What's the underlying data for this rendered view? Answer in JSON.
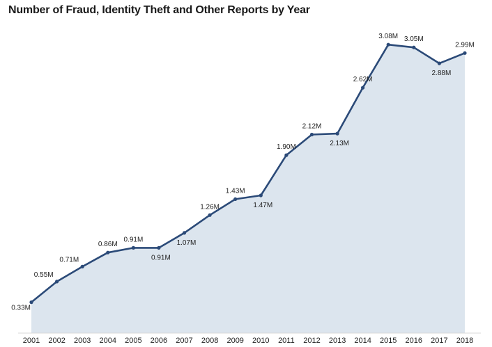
{
  "chart_data": {
    "type": "area",
    "title": "Number of Fraud, Identity Theft and Other Reports by Year",
    "xlabel": "",
    "ylabel": "",
    "categories": [
      "2001",
      "2002",
      "2003",
      "2004",
      "2005",
      "2006",
      "2007",
      "2008",
      "2009",
      "2010",
      "2011",
      "2012",
      "2013",
      "2014",
      "2015",
      "2016",
      "2017",
      "2018"
    ],
    "values": [
      0.33,
      0.55,
      0.71,
      0.86,
      0.91,
      0.91,
      1.07,
      1.26,
      1.43,
      1.47,
      1.9,
      2.12,
      2.13,
      2.62,
      3.08,
      3.05,
      2.88,
      2.99
    ],
    "data_labels": [
      "0.33M",
      "0.55M",
      "0.71M",
      "0.86M",
      "0.91M",
      "0.91M",
      "1.07M",
      "1.26M",
      "1.43M",
      "1.47M",
      "1.90M",
      "2.12M",
      "2.13M",
      "2.62M",
      "3.08M",
      "3.05M",
      "2.88M",
      "2.99M"
    ],
    "label_side": [
      "left-below",
      "left",
      "left",
      "above",
      "above",
      "below",
      "below",
      "above",
      "above",
      "below",
      "above",
      "above",
      "below",
      "above",
      "above",
      "above",
      "below",
      "above"
    ],
    "ylim": [
      0,
      3.2
    ],
    "grid": false,
    "colors": {
      "line": "#2b4a78",
      "fill": "#dce5ee",
      "marker": "#2b4a78"
    }
  }
}
